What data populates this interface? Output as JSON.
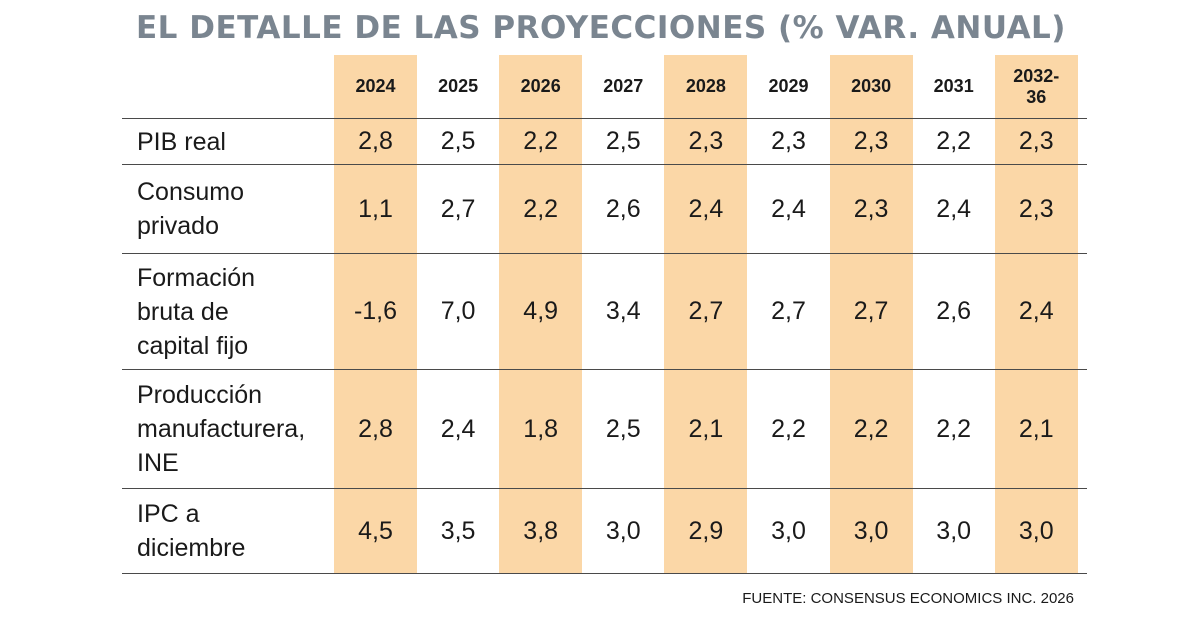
{
  "title": "EL DETALLE DE LAS PROYECCIONES (% VAR. ANUAL)",
  "source": "FUENTE: CONSENSUS ECONOMICS INC. 2026",
  "colors": {
    "title": "#7a8590",
    "shade": "#fbd7a7",
    "rule": "#4a4a4a"
  },
  "chart_data": {
    "type": "table",
    "title": "EL DETALLE DE LAS PROYECCIONES (% VAR. ANUAL)",
    "columns": [
      "2024",
      "2025",
      "2026",
      "2027",
      "2028",
      "2029",
      "2030",
      "2031",
      "2032-\n36"
    ],
    "shaded_columns": [
      "2024",
      "2026",
      "2028",
      "2030",
      "2032-\n36"
    ],
    "rows": [
      {
        "label": "PIB real",
        "values": [
          "2,8",
          "2,5",
          "2,2",
          "2,5",
          "2,3",
          "2,3",
          "2,3",
          "2,2",
          "2,3"
        ]
      },
      {
        "label": "Consumo\nprivado",
        "values": [
          "1,1",
          "2,7",
          "2,2",
          "2,6",
          "2,4",
          "2,4",
          "2,3",
          "2,4",
          "2,3"
        ]
      },
      {
        "label": "Formación\nbruta de\ncapital fijo",
        "values": [
          "-1,6",
          "7,0",
          "4,9",
          "3,4",
          "2,7",
          "2,7",
          "2,7",
          "2,6",
          "2,4"
        ]
      },
      {
        "label": "Producción\nmanufacturera,\nINE",
        "values": [
          "2,8",
          "2,4",
          "1,8",
          "2,5",
          "2,1",
          "2,2",
          "2,2",
          "2,2",
          "2,1"
        ]
      },
      {
        "label": "IPC a\ndiciembre",
        "values": [
          "4,5",
          "3,5",
          "3,8",
          "3,0",
          "2,9",
          "3,0",
          "3,0",
          "3,0",
          "3,0"
        ]
      }
    ],
    "source": "FUENTE: CONSENSUS ECONOMICS INC. 2026"
  }
}
